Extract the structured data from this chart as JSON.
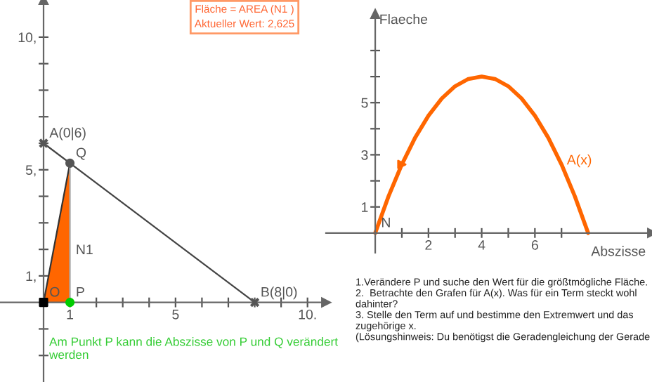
{
  "chart_data": [
    {
      "type": "line",
      "xlim": [
        -1.65,
        10.7
      ],
      "ylim": [
        -3.0,
        11.4
      ],
      "xticks": [
        {
          "value": 1,
          "label": "1"
        },
        {
          "value": 2,
          "label": null
        },
        {
          "value": 3,
          "label": null
        },
        {
          "value": 4,
          "label": null
        },
        5,
        {
          "value": 6,
          "label": null
        },
        {
          "value": 7,
          "label": null
        },
        {
          "value": 8,
          "label": null
        },
        {
          "value": 9,
          "label": null
        },
        {
          "value": 10,
          "label": "10."
        }
      ],
      "yticks": [
        {
          "value": -2,
          "label": null
        },
        {
          "value": -1,
          "label": null
        },
        {
          "value": 1,
          "label": "1,"
        },
        {
          "value": 2,
          "label": null
        },
        {
          "value": 3,
          "label": null
        },
        {
          "value": 4,
          "label": null
        },
        {
          "value": 5,
          "label": "5,"
        },
        {
          "value": 6,
          "label": null
        },
        {
          "value": 7,
          "label": null
        },
        {
          "value": 8,
          "label": null
        },
        {
          "value": 9,
          "label": null
        },
        {
          "value": 10,
          "label": "10,"
        }
      ],
      "grid": false,
      "legend": false,
      "series": [
        {
          "type": "area",
          "color": "#ff6600",
          "x": [
            0,
            1
          ],
          "values": [
            0,
            5.25
          ]
        },
        {
          "type": "line",
          "color": "#444444",
          "x": [
            0,
            8
          ],
          "values": [
            6,
            0
          ]
        },
        {
          "type": "line",
          "color": "#aaaaaa",
          "x": [
            1,
            1
          ],
          "values": [
            0,
            5.25
          ]
        },
        {
          "type": "scatter",
          "color": "#555555",
          "marker": "cross",
          "x": [
            0,
            8
          ],
          "values": [
            6,
            0
          ]
        },
        {
          "type": "scatter",
          "color": "#000000",
          "marker": "square",
          "x": [
            0
          ],
          "values": [
            0
          ]
        },
        {
          "type": "scatter",
          "color": "#00cc00",
          "marker": "circle",
          "x": [
            1
          ],
          "values": [
            0
          ]
        },
        {
          "type": "scatter",
          "color": "#555555",
          "marker": "circle",
          "x": [
            1
          ],
          "values": [
            5.25
          ]
        }
      ],
      "annotations": [
        "Fläche = AREA (N1 )\nAktueller Wert: 2,625",
        "Am Punkt P kann die Abszisse von P und Q verändert\nwerden",
        {
          "text": "A(0|6)",
          "x": 0,
          "y": 6
        },
        {
          "text": "Q",
          "x": 1,
          "y": 5.25
        },
        {
          "text": "B(8|0)",
          "x": 8,
          "y": 0
        },
        {
          "text": "O",
          "x": 0,
          "y": 0
        },
        {
          "text": "P",
          "x": 1,
          "y": 0
        },
        {
          "text": "N1",
          "x": 1,
          "y": 1.6
        }
      ]
    },
    {
      "type": "line",
      "xlim": [
        -1.85,
        10.4
      ],
      "ylim": [
        -0.76,
        8.4
      ],
      "xlabel": "Abszisse",
      "ylabel": "Flaeche",
      "xticks": [
        {
          "value": 1,
          "label": null
        },
        2,
        {
          "value": 3,
          "label": null
        },
        4,
        {
          "value": 5,
          "label": null
        },
        6,
        {
          "value": 7,
          "label": null
        }
      ],
      "yticks": [
        1,
        {
          "value": 2,
          "label": null
        },
        3,
        {
          "value": 4,
          "label": null
        },
        5,
        {
          "value": 6,
          "label": null
        },
        {
          "value": 7,
          "label": null
        }
      ],
      "grid": false,
      "legend": false,
      "series": [
        {
          "type": "line",
          "name": "A(x)",
          "color": "#ff6600",
          "x": [
            0,
            0.5,
            1,
            1.5,
            2,
            2.5,
            3,
            3.5,
            4,
            4.5,
            5,
            5.5,
            6,
            6.5,
            7,
            7.5,
            8
          ],
          "values": [
            0,
            1.41,
            2.63,
            3.66,
            4.5,
            5.16,
            5.63,
            5.91,
            6,
            5.91,
            5.63,
            5.16,
            4.5,
            3.66,
            2.63,
            1.41,
            0
          ]
        },
        {
          "type": "scatter",
          "color": "#ff6600",
          "marker": "triangle",
          "x": [
            1
          ],
          "values": [
            2.63
          ]
        }
      ],
      "annotations": [
        {
          "text": "N",
          "x": 0,
          "y": 0
        },
        "1.Verändere P und suche den Wert für die größtmögliche Fläche.\n2.  Betrachte den Grafen für A(x). Was für ein Term steckt wohl dahinter?\n3. Stelle den Term auf und bestimme den Extremwert und das zugehörige x.\n(Lösungshinweis: Du benötigst die Geradengleichung der Gerade"
      ]
    }
  ]
}
